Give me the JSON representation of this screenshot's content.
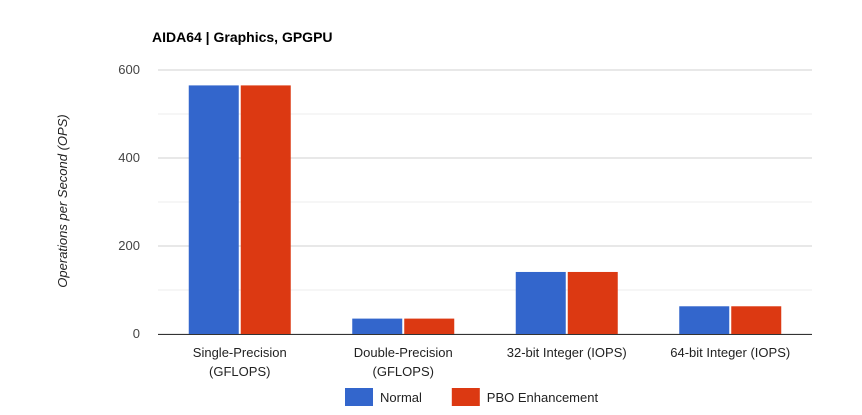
{
  "chart_data": {
    "type": "bar",
    "title": "AIDA64 | Graphics, GPGPU",
    "xlabel": "",
    "ylabel": "Operations per Second (OPS)",
    "ylim": [
      0,
      600
    ],
    "yticks": [
      0,
      200,
      400,
      600
    ],
    "categories": [
      [
        "Single-Precision",
        "(GFLOPS)"
      ],
      [
        "Double-Precision",
        "(GFLOPS)"
      ],
      [
        "32-bit Integer (IOPS)"
      ],
      [
        "64-bit Integer (IOPS)"
      ]
    ],
    "series": [
      {
        "name": "Normal",
        "color": "#3366cc",
        "values": [
          565,
          35,
          141,
          63
        ]
      },
      {
        "name": "PBO Enhancement",
        "color": "#dc3912",
        "values": [
          565,
          35,
          141,
          63
        ]
      }
    ],
    "legend": "bottom",
    "grid": true
  }
}
